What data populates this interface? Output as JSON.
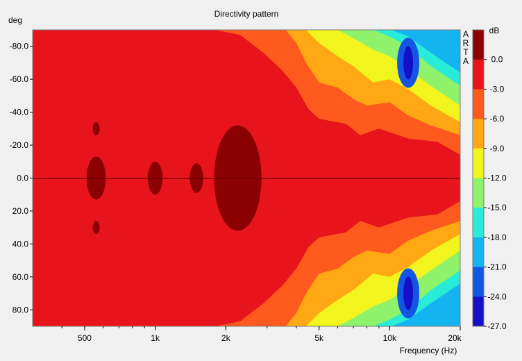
{
  "chart_data": {
    "type": "heatmap",
    "title": "Directivity pattern",
    "xlabel": "Frequency (Hz)",
    "ylabel": "deg",
    "x_scale": "log",
    "xlim": [
      300,
      20000
    ],
    "ylim": [
      -90,
      90
    ],
    "y_inverted": true,
    "x_ticks": [
      {
        "value": 500,
        "label": "500"
      },
      {
        "value": 1000,
        "label": "1k"
      },
      {
        "value": 2000,
        "label": "2k"
      },
      {
        "value": 5000,
        "label": "5k"
      },
      {
        "value": 10000,
        "label": "10k"
      },
      {
        "value": 20000,
        "label": "20k"
      }
    ],
    "y_ticks": [
      {
        "value": -80,
        "label": "-80.0"
      },
      {
        "value": -60,
        "label": "-60.0"
      },
      {
        "value": -40,
        "label": "-40.0"
      },
      {
        "value": -20,
        "label": "-20.0"
      },
      {
        "value": 0,
        "label": "0.0"
      },
      {
        "value": 20,
        "label": "20.0"
      },
      {
        "value": 40,
        "label": "40.0"
      },
      {
        "value": 60,
        "label": "60.0"
      },
      {
        "value": 80,
        "label": "80.0"
      }
    ],
    "colorbar": {
      "unit": "dB",
      "watermark": "ARTA",
      "bands": [
        {
          "low": 0,
          "high": 3,
          "color": "#8b0000"
        },
        {
          "low": -3,
          "high": 0,
          "color": "#e8141c"
        },
        {
          "low": -6,
          "high": -3,
          "color": "#ff5a1e"
        },
        {
          "low": -9,
          "high": -6,
          "color": "#ffa814"
        },
        {
          "low": -12,
          "high": -9,
          "color": "#f2f41e"
        },
        {
          "low": -15,
          "high": -12,
          "color": "#8ef26a"
        },
        {
          "low": -18,
          "high": -15,
          "color": "#28ecd8"
        },
        {
          "low": -21,
          "high": -18,
          "color": "#14b4f0"
        },
        {
          "low": -24,
          "high": -21,
          "color": "#1456e4"
        },
        {
          "low": -27,
          "high": -24,
          "color": "#1410c8"
        }
      ],
      "tick_labels": [
        "0.0",
        "-3.0",
        "-6.0",
        "-9.0",
        "-12.0",
        "-15.0",
        "-18.0",
        "-21.0",
        "-24.0",
        "-27.0"
      ]
    },
    "contours": [
      {
        "level": -3,
        "upper_boundary": [
          [
            300,
            -90
          ],
          [
            700,
            -90
          ],
          [
            1800,
            -90
          ],
          [
            2300,
            -87
          ],
          [
            2900,
            -76
          ],
          [
            3500,
            -65
          ],
          [
            4000,
            -55
          ],
          [
            4500,
            -42
          ],
          [
            5000,
            -36
          ],
          [
            6500,
            -33
          ],
          [
            7500,
            -26
          ],
          [
            9000,
            -30
          ],
          [
            12000,
            -24
          ],
          [
            16000,
            -22
          ],
          [
            20000,
            -14
          ]
        ]
      },
      {
        "level": -6,
        "upper_boundary": [
          [
            3600,
            -90
          ],
          [
            4000,
            -82
          ],
          [
            4400,
            -70
          ],
          [
            5000,
            -58
          ],
          [
            6000,
            -55
          ],
          [
            7000,
            -48
          ],
          [
            8000,
            -44
          ],
          [
            10000,
            -46
          ],
          [
            12000,
            -38
          ],
          [
            15000,
            -32
          ],
          [
            20000,
            -26
          ]
        ]
      },
      {
        "level": -9,
        "upper_boundary": [
          [
            4400,
            -90
          ],
          [
            5000,
            -82
          ],
          [
            6000,
            -74
          ],
          [
            7000,
            -68
          ],
          [
            8500,
            -58
          ],
          [
            10000,
            -60
          ],
          [
            12000,
            -54
          ],
          [
            15000,
            -44
          ],
          [
            20000,
            -34
          ]
        ]
      },
      {
        "level": -12,
        "upper_boundary": [
          [
            6000,
            -90
          ],
          [
            7000,
            -85
          ],
          [
            8500,
            -78
          ],
          [
            10000,
            -74
          ],
          [
            12000,
            -66
          ],
          [
            15000,
            -56
          ],
          [
            20000,
            -44
          ]
        ]
      },
      {
        "level": -15,
        "upper_boundary": [
          [
            8500,
            -90
          ],
          [
            10000,
            -86
          ],
          [
            12000,
            -80
          ],
          [
            15000,
            -68
          ],
          [
            20000,
            -56
          ]
        ]
      },
      {
        "level": -18,
        "upper_boundary": [
          [
            10200,
            -90
          ],
          [
            12000,
            -86
          ],
          [
            15000,
            -76
          ],
          [
            20000,
            -64
          ]
        ]
      }
    ],
    "hot_spots_0dB": [
      {
        "freq": 560,
        "angle": 0,
        "half_width_deg": 13
      },
      {
        "freq": 560,
        "angle": -30,
        "half_width_deg": 4
      },
      {
        "freq": 560,
        "angle": 30,
        "half_width_deg": 4
      },
      {
        "freq": 1000,
        "angle": 0,
        "half_width_deg": 10
      },
      {
        "freq": 1500,
        "angle": 0,
        "half_width_deg": 9
      },
      {
        "freq": 2250,
        "angle": 0,
        "half_width_deg": 32
      }
    ],
    "deep_minima": [
      {
        "freq": 12000,
        "angle": -70,
        "level": -27
      },
      {
        "freq": 12000,
        "angle": 70,
        "level": -27
      }
    ]
  }
}
